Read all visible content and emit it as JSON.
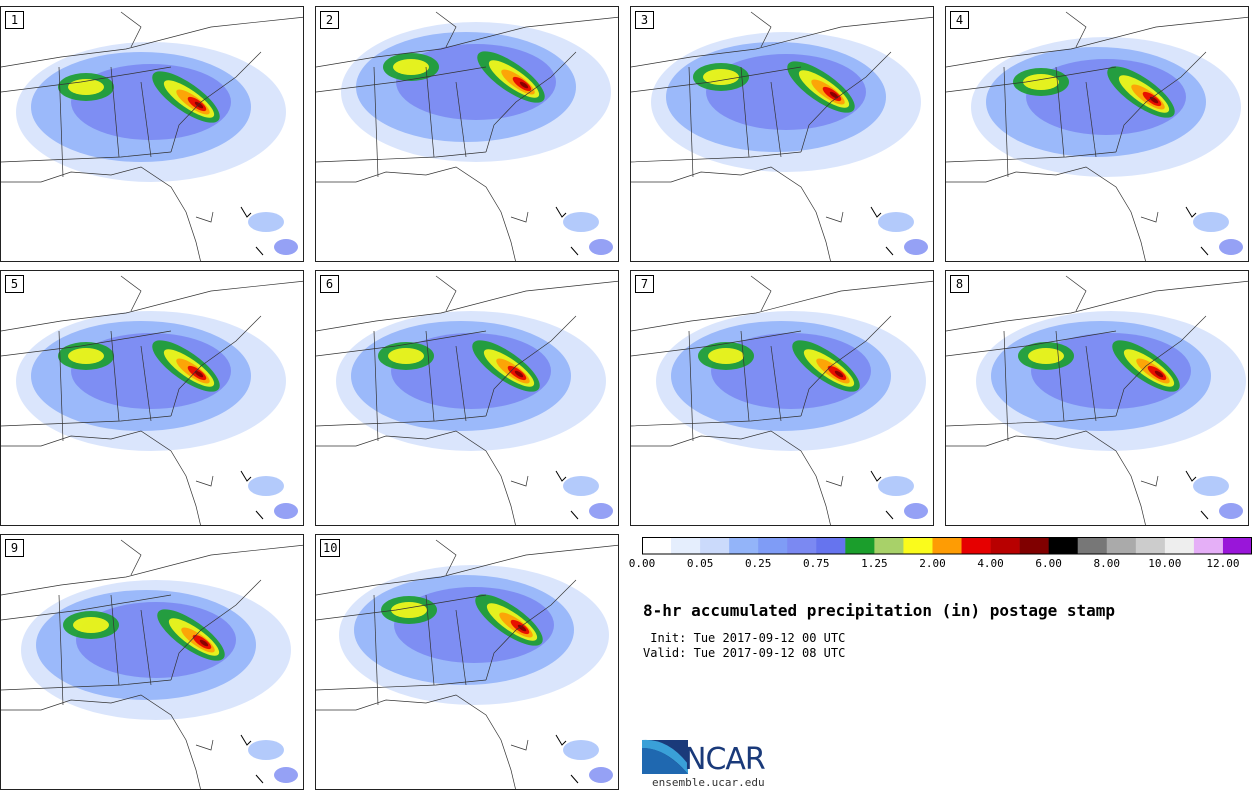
{
  "figure": {
    "title": "8-hr accumulated precipitation (in) postage stamp",
    "init_label": " Init:",
    "init_time": "Tue 2017-09-12 00 UTC",
    "valid_label": "Valid:",
    "valid_time": "Tue 2017-09-12 08 UTC"
  },
  "members": [
    "1",
    "2",
    "3",
    "4",
    "5",
    "6",
    "7",
    "8",
    "9",
    "10"
  ],
  "colorbar": {
    "colors": [
      "#ffffff",
      "#e5eefd",
      "#cbdafb",
      "#93b4f9",
      "#7f9cf6",
      "#7b89f2",
      "#6674ee",
      "#1b9e2c",
      "#a8d169",
      "#fafb1c",
      "#fe9c04",
      "#e60000",
      "#b80000",
      "#800000",
      "#000000",
      "#777777",
      "#aaaaaa",
      "#cccccc",
      "#eeeeee",
      "#e5aff7",
      "#9916d9"
    ],
    "labels": [
      "0.00",
      "0.05",
      "0.25",
      "0.75",
      "1.25",
      "2.00",
      "4.00",
      "6.00",
      "8.00",
      "10.00",
      "12.00"
    ]
  },
  "logo": {
    "word": "NCAR",
    "url": "ensemble.ucar.edu"
  }
}
